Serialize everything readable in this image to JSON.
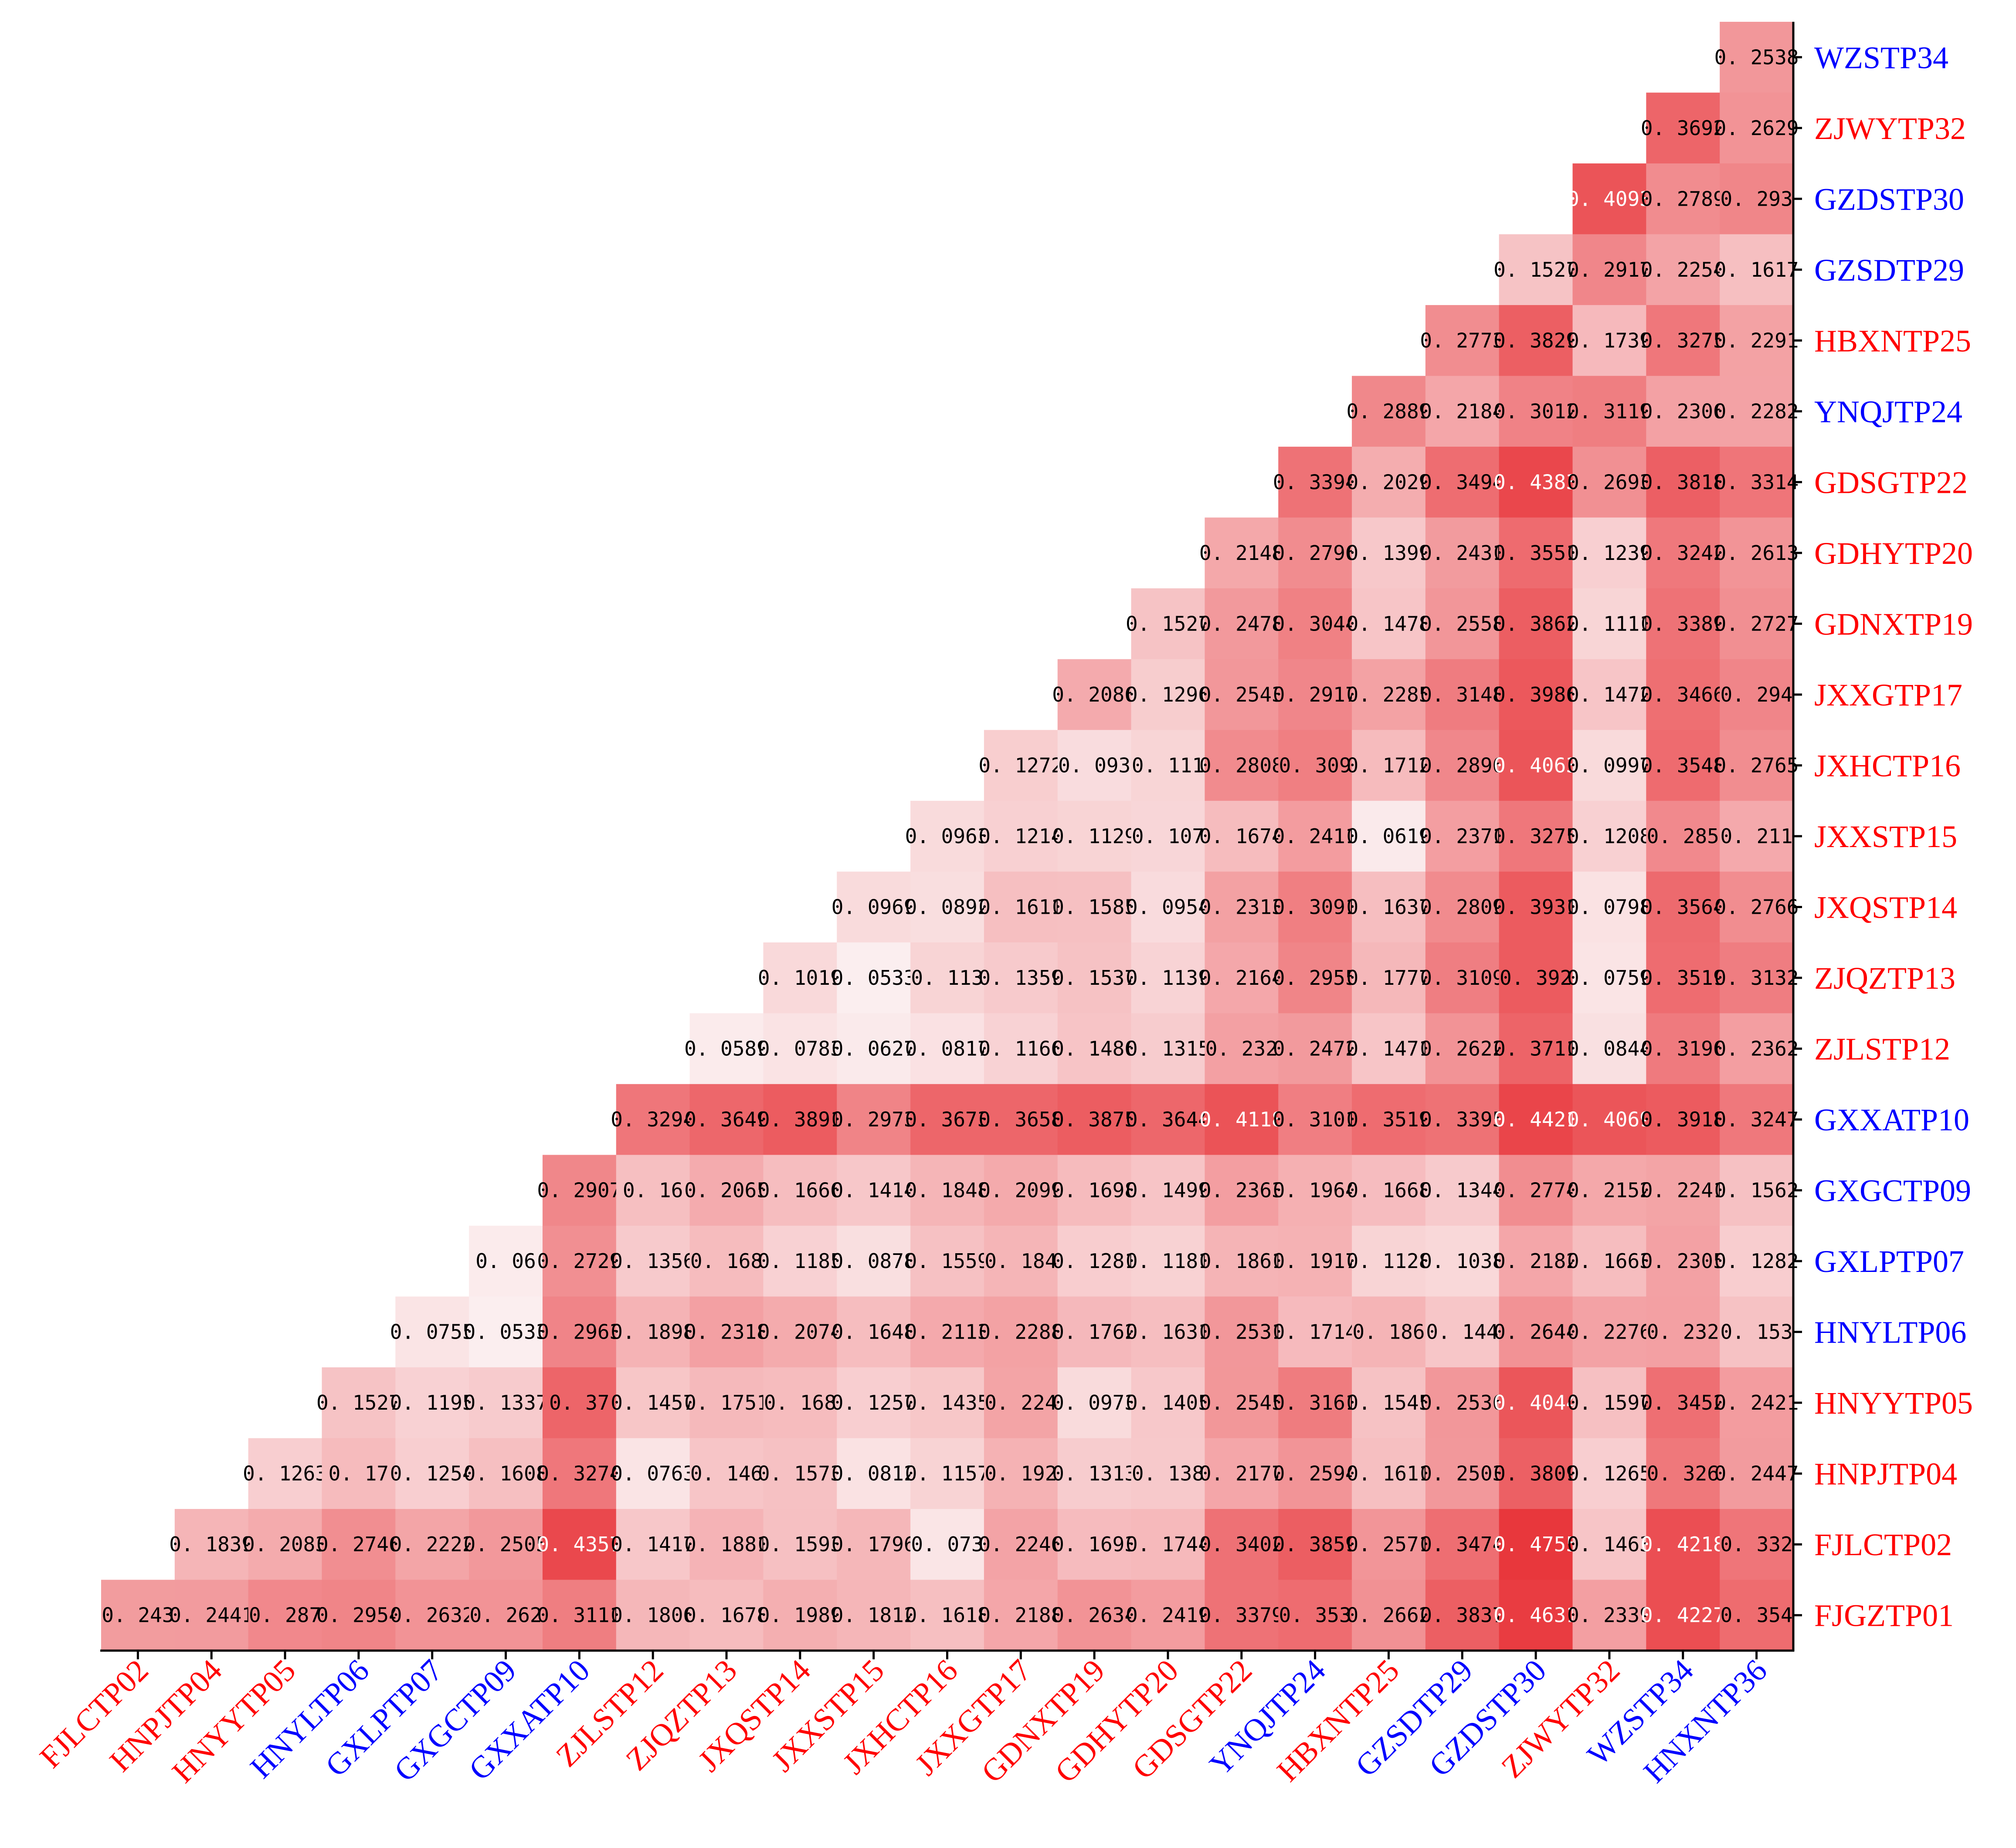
{
  "chart_data": {
    "type": "heatmap",
    "title": "",
    "xlabel": "",
    "ylabel": "",
    "color_low": "#fbeff0",
    "color_high": "#e8353a",
    "value_range": [
      0.05,
      0.48
    ],
    "label_colors": {
      "red": "#ff0000",
      "blue": "#0000ff"
    },
    "rows": [
      {
        "label": "WZSTP34",
        "color": "blue"
      },
      {
        "label": "ZJWYTP32",
        "color": "red"
      },
      {
        "label": "GZDSTP30",
        "color": "blue"
      },
      {
        "label": "GZSDTP29",
        "color": "blue"
      },
      {
        "label": "HBXNTP25",
        "color": "red"
      },
      {
        "label": "YNQJTP24",
        "color": "blue"
      },
      {
        "label": "GDSGTP22",
        "color": "red"
      },
      {
        "label": "GDHYTP20",
        "color": "red"
      },
      {
        "label": "GDNXTP19",
        "color": "red"
      },
      {
        "label": "JXXGTP17",
        "color": "red"
      },
      {
        "label": "JXHCTP16",
        "color": "red"
      },
      {
        "label": "JXXSTP15",
        "color": "red"
      },
      {
        "label": "JXQSTP14",
        "color": "red"
      },
      {
        "label": "ZJQZTP13",
        "color": "red"
      },
      {
        "label": "ZJLSTP12",
        "color": "red"
      },
      {
        "label": "GXXATP10",
        "color": "blue"
      },
      {
        "label": "GXGCTP09",
        "color": "blue"
      },
      {
        "label": "GXLPTP07",
        "color": "blue"
      },
      {
        "label": "HNYLTP06",
        "color": "blue"
      },
      {
        "label": "HNYYTP05",
        "color": "red"
      },
      {
        "label": "HNPJTP04",
        "color": "red"
      },
      {
        "label": "FJLCTP02",
        "color": "red"
      },
      {
        "label": "FJGZTP01",
        "color": "red"
      }
    ],
    "columns": [
      {
        "label": "FJLCTP02",
        "color": "red"
      },
      {
        "label": "HNPJTP04",
        "color": "red"
      },
      {
        "label": "HNYYTP05",
        "color": "red"
      },
      {
        "label": "HNYLTP06",
        "color": "blue"
      },
      {
        "label": "GXLPTP07",
        "color": "blue"
      },
      {
        "label": "GXGCTP09",
        "color": "blue"
      },
      {
        "label": "GXXATP10",
        "color": "blue"
      },
      {
        "label": "ZJLSTP12",
        "color": "red"
      },
      {
        "label": "ZJQZTP13",
        "color": "red"
      },
      {
        "label": "JXQSTP14",
        "color": "red"
      },
      {
        "label": "JXXSTP15",
        "color": "red"
      },
      {
        "label": "JXHCTP16",
        "color": "red"
      },
      {
        "label": "JXXGTP17",
        "color": "red"
      },
      {
        "label": "GDNXTP19",
        "color": "red"
      },
      {
        "label": "GDHYTP20",
        "color": "red"
      },
      {
        "label": "GDSGTP22",
        "color": "red"
      },
      {
        "label": "YNQJTP24",
        "color": "blue"
      },
      {
        "label": "HBXNTP25",
        "color": "red"
      },
      {
        "label": "GZSDTP29",
        "color": "blue"
      },
      {
        "label": "GZDSTP30",
        "color": "blue"
      },
      {
        "label": "ZJWYTP32",
        "color": "red"
      },
      {
        "label": "WZSTP34",
        "color": "blue"
      },
      {
        "label": "HNXNTP36",
        "color": "blue"
      }
    ],
    "values": [
      [
        0.2538
      ],
      [
        0.3692,
        0.2629
      ],
      [
        0.4093,
        0.2789,
        0.293
      ],
      [
        0.1527,
        0.2917,
        0.2254,
        0.1617
      ],
      [
        0.2773,
        0.3829,
        0.1739,
        0.3275,
        0.2291
      ],
      [
        0.2889,
        0.2184,
        0.3012,
        0.3119,
        0.2306,
        0.2282
      ],
      [
        0.3394,
        0.2029,
        0.3494,
        0.4383,
        0.2693,
        0.3818,
        0.3314
      ],
      [
        0.2148,
        0.2796,
        0.1399,
        0.2431,
        0.3551,
        0.1239,
        0.3242,
        0.2613
      ],
      [
        0.1527,
        0.2478,
        0.3044,
        0.1478,
        0.2558,
        0.3862,
        0.1111,
        0.3389,
        0.2727
      ],
      [
        0.2086,
        0.1296,
        0.2543,
        0.2917,
        0.2285,
        0.3148,
        0.3986,
        0.1472,
        0.3466,
        0.294
      ],
      [
        0.1272,
        0.093,
        0.111,
        0.2808,
        0.309,
        0.1712,
        0.2896,
        0.4063,
        0.0997,
        0.3548,
        0.2765
      ],
      [
        0.0963,
        0.1214,
        0.1129,
        0.107,
        0.1674,
        0.2411,
        0.0619,
        0.2371,
        0.3275,
        0.1208,
        0.285,
        0.211
      ],
      [
        0.0969,
        0.0892,
        0.1611,
        0.1585,
        0.0954,
        0.2313,
        0.3091,
        0.1637,
        0.2809,
        0.3931,
        0.0798,
        0.3564,
        0.2766
      ],
      [
        0.1019,
        0.0533,
        0.113,
        0.1359,
        0.1537,
        0.1139,
        0.2164,
        0.2955,
        0.1777,
        0.3109,
        0.392,
        0.0759,
        0.3519,
        0.3132
      ],
      [
        0.0589,
        0.0783,
        0.0627,
        0.0817,
        0.1166,
        0.1486,
        0.1315,
        0.232,
        0.2472,
        0.1471,
        0.2622,
        0.3711,
        0.0844,
        0.3196,
        0.2362
      ],
      [
        0.3294,
        0.3649,
        0.3891,
        0.2973,
        0.3673,
        0.3658,
        0.3875,
        0.3644,
        0.4118,
        0.3101,
        0.3519,
        0.3395,
        0.4421,
        0.4069,
        0.3918,
        0.3247
      ],
      [
        0.2907,
        0.16,
        0.2065,
        0.1666,
        0.1414,
        0.1848,
        0.2099,
        0.1698,
        0.1499,
        0.2363,
        0.1964,
        0.1668,
        0.1344,
        0.2774,
        0.2152,
        0.2241,
        0.1562
      ],
      [
        0.06,
        0.2729,
        0.1356,
        0.168,
        0.1185,
        0.0878,
        0.1559,
        0.184,
        0.1281,
        0.1181,
        0.1861,
        0.1917,
        0.1128,
        0.1038,
        0.2182,
        0.1663,
        0.2305,
        0.1282
      ],
      [
        0.0755,
        0.0533,
        0.2963,
        0.1898,
        0.2318,
        0.2074,
        0.1648,
        0.2113,
        0.2288,
        0.1762,
        0.1631,
        0.2531,
        0.1714,
        0.186,
        0.144,
        0.2644,
        0.2276,
        0.232,
        0.153
      ],
      [
        0.1527,
        0.1195,
        0.1337,
        0.37,
        0.1457,
        0.1751,
        0.168,
        0.1257,
        0.1435,
        0.224,
        0.0973,
        0.1405,
        0.2545,
        0.3161,
        0.1545,
        0.2536,
        0.4044,
        0.1597,
        0.3452,
        0.2421
      ],
      [
        0.1263,
        0.17,
        0.1254,
        0.1608,
        0.3274,
        0.0763,
        0.146,
        0.1573,
        0.0812,
        0.1157,
        0.192,
        0.1313,
        0.138,
        0.2177,
        0.2594,
        0.1611,
        0.2503,
        0.3809,
        0.1265,
        0.326,
        0.2447
      ],
      [
        0.1839,
        0.2083,
        0.2746,
        0.2222,
        0.2505,
        0.4357,
        0.1417,
        0.1881,
        0.1593,
        0.1796,
        0.073,
        0.2246,
        0.1693,
        0.1744,
        0.3402,
        0.3859,
        0.2571,
        0.3474,
        0.4755,
        0.1463,
        0.4218,
        0.332
      ],
      [
        0.243,
        0.2441,
        0.287,
        0.2954,
        0.2632,
        0.262,
        0.3111,
        0.1806,
        0.1678,
        0.1989,
        0.1812,
        0.1618,
        0.2188,
        0.2634,
        0.2419,
        0.3379,
        0.353,
        0.2662,
        0.3837,
        0.4631,
        0.2339,
        0.4227,
        0.354
      ]
    ],
    "grid": false,
    "legend": "none"
  }
}
